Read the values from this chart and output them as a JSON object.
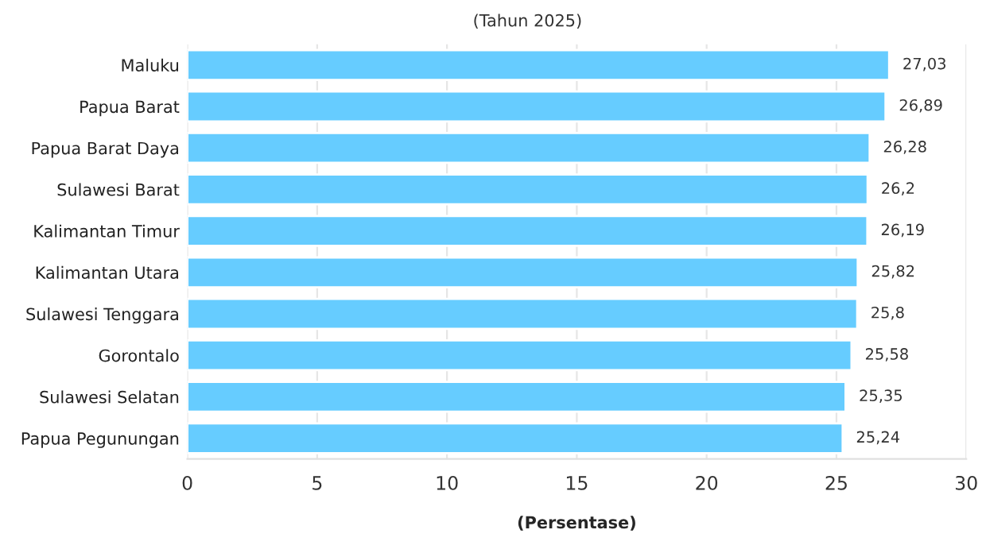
{
  "chart_data": {
    "type": "bar",
    "orientation": "horizontal",
    "subtitle": "(Tahun 2025)",
    "xlabel": "(Persentase)",
    "categories": [
      "Maluku",
      "Papua Barat",
      "Papua Barat Daya",
      "Sulawesi Barat",
      "Kalimantan Timur",
      "Kalimantan Utara",
      "Sulawesi Tenggara",
      "Gorontalo",
      "Sulawesi Selatan",
      "Papua Pegunungan"
    ],
    "values": [
      27.03,
      26.89,
      26.28,
      26.2,
      26.19,
      25.82,
      25.8,
      25.58,
      25.35,
      25.24
    ],
    "value_labels": [
      "27,03",
      "26,89",
      "26,28",
      "26,2",
      "26,19",
      "25,82",
      "25,8",
      "25,58",
      "25,35",
      "25,24"
    ],
    "color": "#66ccff",
    "xlim": [
      0,
      30
    ],
    "xticks": [
      0,
      5,
      10,
      15,
      20,
      25,
      30
    ],
    "grid": "x",
    "legend": false
  }
}
